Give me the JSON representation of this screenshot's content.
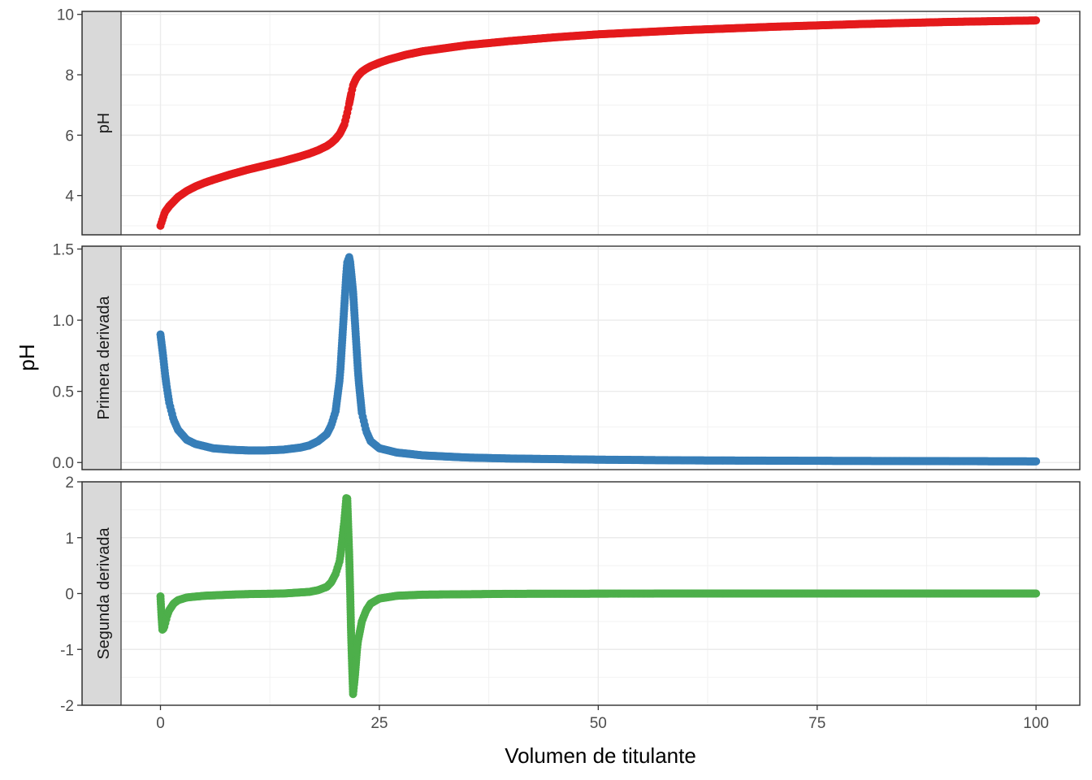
{
  "chart_data": {
    "type": "scatter",
    "xlabel": "Volumen de titulante",
    "ylabel": "pH",
    "x_ticks": [
      0,
      25,
      50,
      75,
      100
    ],
    "xlim": [
      -4.5,
      105
    ],
    "grid": true,
    "legend": "none",
    "panels": [
      {
        "strip": "pH",
        "color": "#E41A1C",
        "ylim": [
          2.7,
          10.1
        ],
        "y_ticks": [
          4,
          6,
          8,
          10
        ],
        "y_tick_labels": [
          "4",
          "6",
          "8",
          "10"
        ],
        "x": [
          0,
          0.5,
          1,
          2,
          3,
          4,
          5,
          6,
          8,
          10,
          12,
          14,
          16,
          17,
          18,
          19,
          19.5,
          20,
          20.5,
          21,
          21.3,
          21.6,
          21.8,
          22,
          22.3,
          22.6,
          23,
          23.5,
          24,
          25,
          26,
          28,
          30,
          35,
          40,
          45,
          50,
          60,
          70,
          80,
          90,
          100
        ],
        "y": [
          3.0,
          3.45,
          3.65,
          3.95,
          4.15,
          4.3,
          4.42,
          4.52,
          4.7,
          4.86,
          5.0,
          5.14,
          5.3,
          5.39,
          5.5,
          5.64,
          5.74,
          5.87,
          6.05,
          6.35,
          6.7,
          7.1,
          7.4,
          7.65,
          7.85,
          7.98,
          8.1,
          8.2,
          8.28,
          8.4,
          8.5,
          8.66,
          8.78,
          8.98,
          9.12,
          9.24,
          9.34,
          9.48,
          9.59,
          9.68,
          9.75,
          9.8
        ]
      },
      {
        "strip": "Primera derivada",
        "color": "#377EB8",
        "ylim": [
          -0.05,
          1.52
        ],
        "y_ticks": [
          0.0,
          0.5,
          1.0,
          1.5
        ],
        "y_tick_labels": [
          "0.0",
          "0.5",
          "1.0",
          "1.5"
        ],
        "x": [
          0,
          0.3,
          0.6,
          1,
          1.5,
          2,
          3,
          4,
          6,
          8,
          10,
          12,
          14,
          16,
          17,
          18,
          19,
          19.5,
          20,
          20.5,
          21,
          21.3,
          21.6,
          22,
          22.3,
          22.6,
          23,
          23.5,
          24,
          25,
          27,
          30,
          35,
          40,
          50,
          60,
          75,
          100
        ],
        "y": [
          0.9,
          0.75,
          0.58,
          0.42,
          0.3,
          0.23,
          0.16,
          0.13,
          0.1,
          0.09,
          0.085,
          0.085,
          0.09,
          0.105,
          0.12,
          0.15,
          0.2,
          0.26,
          0.36,
          0.6,
          1.1,
          1.4,
          1.45,
          1.2,
          0.9,
          0.6,
          0.35,
          0.22,
          0.15,
          0.1,
          0.07,
          0.05,
          0.035,
          0.028,
          0.02,
          0.015,
          0.012,
          0.008
        ]
      },
      {
        "strip": "Segunda derivada",
        "color": "#4DAF4A",
        "ylim": [
          -2.0,
          2.0
        ],
        "y_ticks": [
          -2,
          -1,
          0,
          1,
          2
        ],
        "y_tick_labels": [
          "-2",
          "-1",
          "0",
          "1",
          "2"
        ],
        "x": [
          0,
          0.2,
          0.4,
          0.6,
          0.8,
          1,
          1.5,
          2,
          3,
          5,
          8,
          10,
          14,
          17,
          18,
          19,
          19.5,
          20,
          20.5,
          21,
          21.3,
          21.6,
          21.8,
          22,
          22.2,
          22.5,
          23,
          23.5,
          24,
          25,
          27,
          30,
          40,
          60,
          100
        ],
        "y": [
          -0.05,
          -0.65,
          -0.62,
          -0.5,
          -0.38,
          -0.3,
          -0.18,
          -0.12,
          -0.07,
          -0.04,
          -0.02,
          -0.01,
          0.0,
          0.03,
          0.06,
          0.12,
          0.2,
          0.35,
          0.6,
          1.3,
          1.85,
          0.5,
          -0.9,
          -1.8,
          -1.5,
          -0.9,
          -0.5,
          -0.3,
          -0.18,
          -0.09,
          -0.04,
          -0.02,
          -0.005,
          0.0,
          0.0
        ]
      }
    ]
  }
}
